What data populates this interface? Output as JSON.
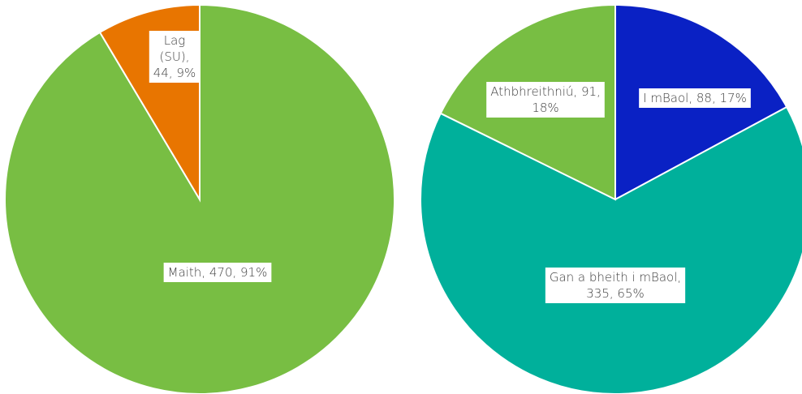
{
  "chart_data": [
    {
      "type": "pie",
      "values": [
        470,
        44
      ],
      "value_labels": [
        "Maith, 470, 91%",
        "Lag (SU), 44, 9%"
      ],
      "colors": [
        "#78be43",
        "#e87500"
      ]
    },
    {
      "type": "pie",
      "values": [
        88,
        335,
        91
      ],
      "value_labels": [
        "I mBaol, 88, 17%",
        "Gan a bheith i mBaol, 335, 65%",
        "Athbhreithniú, 91, 18%"
      ],
      "colors": [
        "#0a21c4",
        "#00b09b",
        "#78be43"
      ]
    }
  ]
}
